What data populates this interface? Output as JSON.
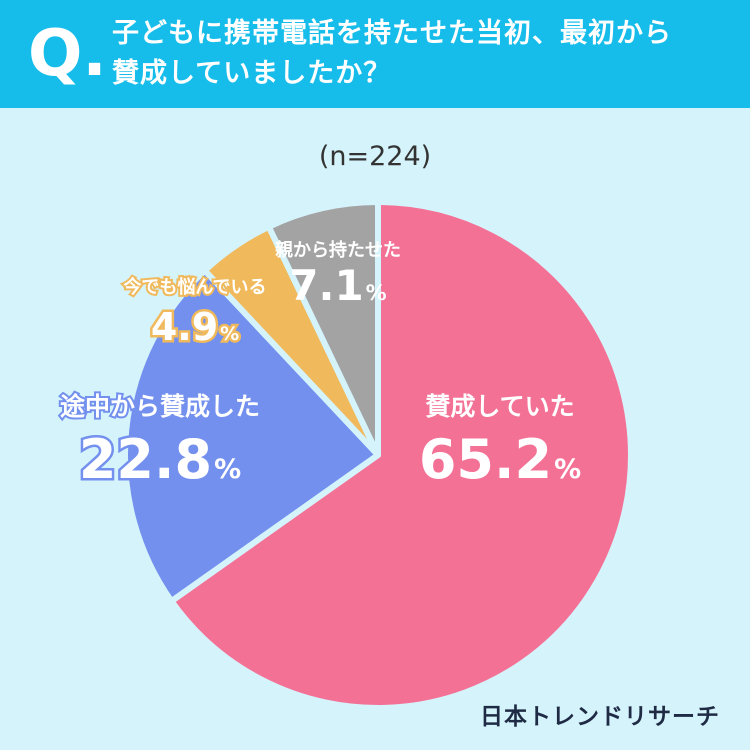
{
  "header": {
    "q_mark": "Q.",
    "question_line1": "子どもに携帯電話を持たせた当初、最初から",
    "question_line2": "賛成していましたか？"
  },
  "chart_data": {
    "type": "pie",
    "sample_size": "(n=224)",
    "slices": [
      {
        "label": "賛成していた",
        "value": 65.2,
        "value_text": "65.2",
        "color": "#f47196"
      },
      {
        "label": "途中から賛成した",
        "value": 22.8,
        "value_text": "22.8",
        "color": "#7390ee"
      },
      {
        "label": "今でも悩んでいる",
        "value": 4.9,
        "value_text": "4.9",
        "color": "#f0b95c"
      },
      {
        "label": "親から持たせた",
        "value": 7.1,
        "value_text": "7.1",
        "color": "#a3a3a3"
      }
    ],
    "percent_sign": "%"
  },
  "footer": {
    "brand": "日本トレンドリサーチ"
  }
}
